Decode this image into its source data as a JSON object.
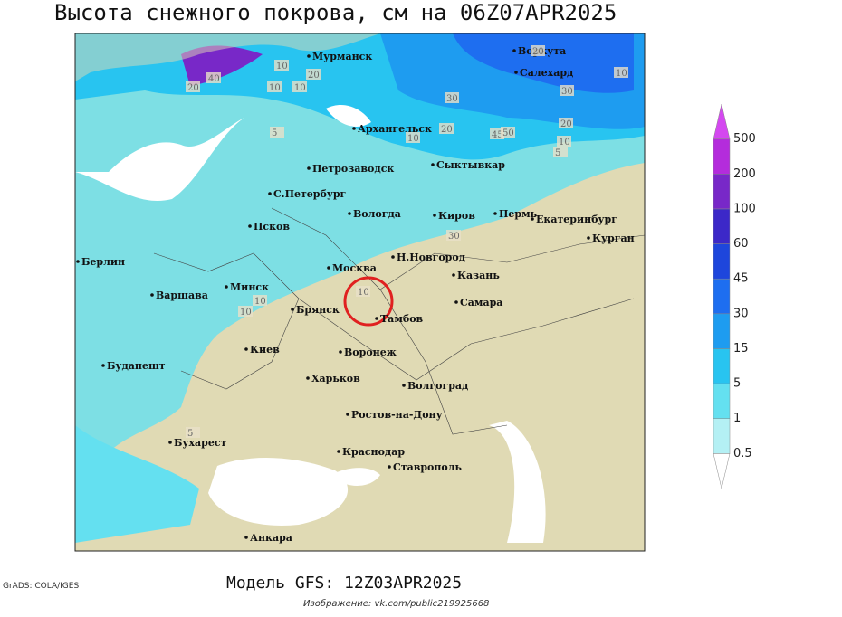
{
  "header": {
    "title": "Высота снежного покрова, см на 06Z07APR2025"
  },
  "cities": [
    "Мурманск",
    "Архангельск",
    "Воркута",
    "Салехард",
    "Петрозаводск",
    "Сыктывкар",
    "С.Петербург",
    "Вологда",
    "Киров",
    "Пермь",
    "Екатеринбург",
    "Курган",
    "Псков",
    "Н.Новгород",
    "Казань",
    "Берлин",
    "Минск",
    "Москва",
    "Варшава",
    "Самара",
    "Брянск",
    "Тамбов",
    "Киев",
    "Воронеж",
    "Будапешт",
    "Харьков",
    "Волгоград",
    "Ростов-на-Дону",
    "Бухарест",
    "Краснодар",
    "Ставрополь",
    "Анкара"
  ],
  "snow_labels": [
    10,
    20,
    40,
    20,
    10,
    10,
    5,
    20,
    30,
    20,
    10,
    30,
    20,
    10,
    45,
    50,
    10,
    5,
    30,
    10,
    10,
    10,
    5
  ],
  "colorbar": {
    "levels": [
      0.5,
      1,
      5,
      15,
      30,
      45,
      60,
      100,
      200,
      500
    ],
    "colors": [
      "#ffffff",
      "#b4f0f4",
      "#64e0f0",
      "#28c4f0",
      "#1e9cf0",
      "#1e6ef0",
      "#1e46dc",
      "#3c28c8",
      "#7828c8",
      "#b42cdc",
      "#d448f0"
    ]
  },
  "footer": {
    "software": "GrADS: COLA/IGES",
    "model": "Модель GFS: 12Z03APR2025",
    "credit": "Изображение: vk.com/public219925668"
  }
}
